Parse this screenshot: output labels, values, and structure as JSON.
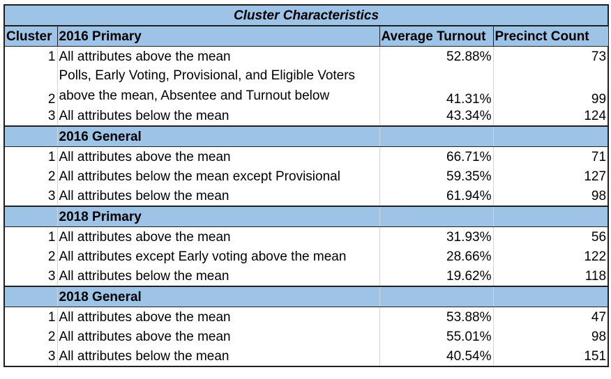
{
  "title": "Cluster Characteristics",
  "headers": {
    "cluster": "Cluster",
    "group": "2016 Primary",
    "turnout": "Average Turnout",
    "precinct": "Precinct Count"
  },
  "sections": [
    {
      "label": "2016 Primary",
      "rows": [
        {
          "cluster": "1",
          "desc": "All attributes above the mean",
          "turnout": "52.88%",
          "count": "73"
        },
        {
          "cluster": "2",
          "desc": "Polls, Early Voting, Provisional, and Eligible Voters above the mean, Absentee and Turnout below",
          "turnout": "41.31%",
          "count": "99"
        },
        {
          "cluster": "3",
          "desc": "All attributes below the mean",
          "turnout": "43.34%",
          "count": "124"
        }
      ]
    },
    {
      "label": "2016 General",
      "rows": [
        {
          "cluster": "1",
          "desc": "All attributes above the mean",
          "turnout": "66.71%",
          "count": "71"
        },
        {
          "cluster": "2",
          "desc": "All attributes below the mean except Provisional",
          "turnout": "59.35%",
          "count": "127"
        },
        {
          "cluster": "3",
          "desc": "All attributes below the mean",
          "turnout": "61.94%",
          "count": "98"
        }
      ]
    },
    {
      "label": "2018 Primary",
      "rows": [
        {
          "cluster": "1",
          "desc": "All attributes above the mean",
          "turnout": "31.93%",
          "count": "56"
        },
        {
          "cluster": "2",
          "desc": "All attributes except Early voting above the mean",
          "turnout": "28.66%",
          "count": "122"
        },
        {
          "cluster": "3",
          "desc": "All attributes below the mean",
          "turnout": "19.62%",
          "count": "118"
        }
      ]
    },
    {
      "label": "2018 General",
      "rows": [
        {
          "cluster": "1",
          "desc": "All attributes above the mean",
          "turnout": "53.88%",
          "count": "47"
        },
        {
          "cluster": "2",
          "desc": "All attributes above the mean",
          "turnout": "55.01%",
          "count": "98"
        },
        {
          "cluster": "3",
          "desc": "All attributes below the mean",
          "turnout": "40.54%",
          "count": "151"
        }
      ]
    }
  ]
}
